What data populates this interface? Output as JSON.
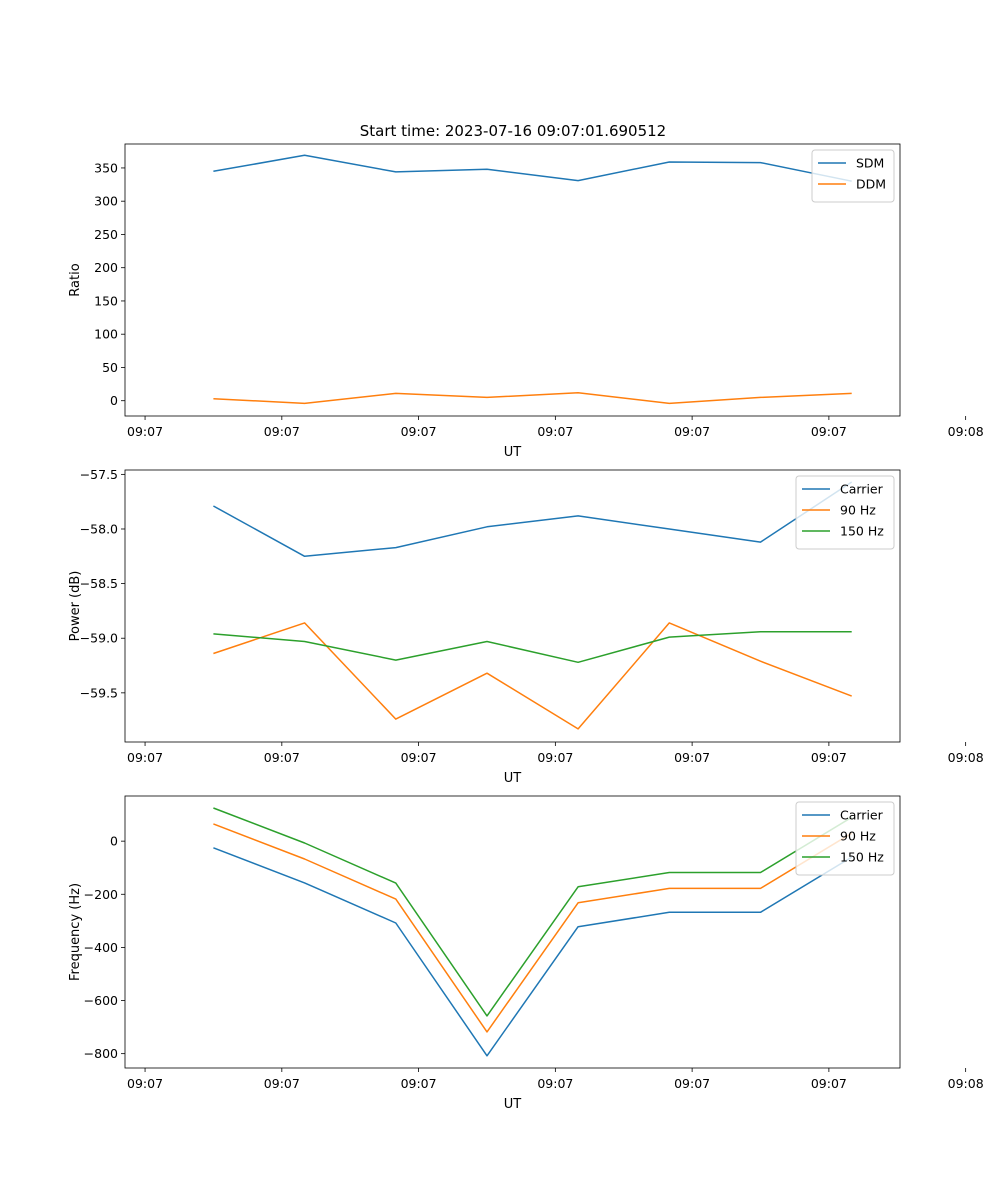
{
  "title": "Start time: 2023-07-16 09:07:01.690512",
  "chart_data": [
    {
      "type": "line",
      "title": "Start time: 2023-07-16 09:07:01.690512",
      "xlabel": "UT",
      "ylabel": "Ratio",
      "ylim": [
        -23,
        386
      ],
      "yticks": [
        0,
        50,
        100,
        150,
        200,
        250,
        300,
        350
      ],
      "ytick_labels": [
        "0",
        "50",
        "100",
        "150",
        "200",
        "250",
        "300",
        "350"
      ],
      "xlim": [
        -0.22,
        8.28
      ],
      "xticks": [
        0,
        1.5,
        3,
        4.5,
        6,
        7.5,
        9
      ],
      "xtick_labels": [
        "09:07",
        "09:07",
        "09:07",
        "09:07",
        "09:07",
        "09:07",
        "09:08"
      ],
      "legend": "top-right",
      "x": [
        0.75,
        1.75,
        2.75,
        3.75,
        4.75,
        5.75,
        6.75,
        7.75
      ],
      "series": [
        {
          "name": "SDM",
          "color": "#1f77b4",
          "values": [
            345,
            369,
            344,
            348,
            331,
            359,
            358,
            330
          ]
        },
        {
          "name": "DDM",
          "color": "#ff7f0e",
          "values": [
            3,
            -4,
            11,
            5,
            12,
            -4,
            5,
            11
          ]
        }
      ]
    },
    {
      "type": "line",
      "title": "",
      "xlabel": "UT",
      "ylabel": "Power (dB)",
      "ylim": [
        -59.95,
        -57.46
      ],
      "yticks": [
        -59.5,
        -59.0,
        -58.5,
        -58.0,
        -57.5
      ],
      "ytick_labels": [
        "−59.5",
        "−59.0",
        "−58.5",
        "−58.0",
        "−57.5"
      ],
      "xlim": [
        -0.22,
        8.28
      ],
      "xticks": [
        0,
        1.5,
        3,
        4.5,
        6,
        7.5,
        9
      ],
      "xtick_labels": [
        "09:07",
        "09:07",
        "09:07",
        "09:07",
        "09:07",
        "09:07",
        "09:08"
      ],
      "legend": "top-right",
      "x": [
        0.75,
        1.75,
        2.75,
        3.75,
        4.75,
        5.75,
        6.75,
        7.75
      ],
      "series": [
        {
          "name": "Carrier",
          "color": "#1f77b4",
          "values": [
            -57.79,
            -58.25,
            -58.17,
            -57.98,
            -57.88,
            -58.0,
            -58.12,
            -57.57
          ]
        },
        {
          "name": "90 Hz",
          "color": "#ff7f0e",
          "values": [
            -59.14,
            -58.86,
            -59.74,
            -59.32,
            -59.83,
            -58.86,
            -59.21,
            -59.53
          ]
        },
        {
          "name": "150 Hz",
          "color": "#2ca02c",
          "values": [
            -58.96,
            -59.03,
            -59.2,
            -59.03,
            -59.22,
            -58.99,
            -58.94,
            -58.94
          ]
        }
      ]
    },
    {
      "type": "line",
      "title": "",
      "xlabel": "UT",
      "ylabel": "Frequency (Hz)",
      "ylim": [
        -854,
        170
      ],
      "yticks": [
        -800,
        -600,
        -400,
        -200,
        0
      ],
      "ytick_labels": [
        "−800",
        "−600",
        "−400",
        "−200",
        "0"
      ],
      "xlim": [
        -0.22,
        8.28
      ],
      "xticks": [
        0,
        1.5,
        3,
        4.5,
        6,
        7.5,
        9
      ],
      "xtick_labels": [
        "09:07",
        "09:07",
        "09:07",
        "09:07",
        "09:07",
        "09:07",
        "09:08"
      ],
      "legend": "top-right",
      "x": [
        0.75,
        1.75,
        2.75,
        3.75,
        4.75,
        5.75,
        6.75,
        7.75
      ],
      "series": [
        {
          "name": "Carrier",
          "color": "#1f77b4",
          "values": [
            -25,
            -157,
            -308,
            -808,
            -322,
            -268,
            -268,
            -60
          ]
        },
        {
          "name": "90 Hz",
          "color": "#ff7f0e",
          "values": [
            65,
            -67,
            -218,
            -718,
            -232,
            -178,
            -178,
            30
          ]
        },
        {
          "name": "150 Hz",
          "color": "#2ca02c",
          "values": [
            125,
            -7,
            -158,
            -658,
            -172,
            -118,
            -118,
            90
          ]
        }
      ]
    }
  ]
}
